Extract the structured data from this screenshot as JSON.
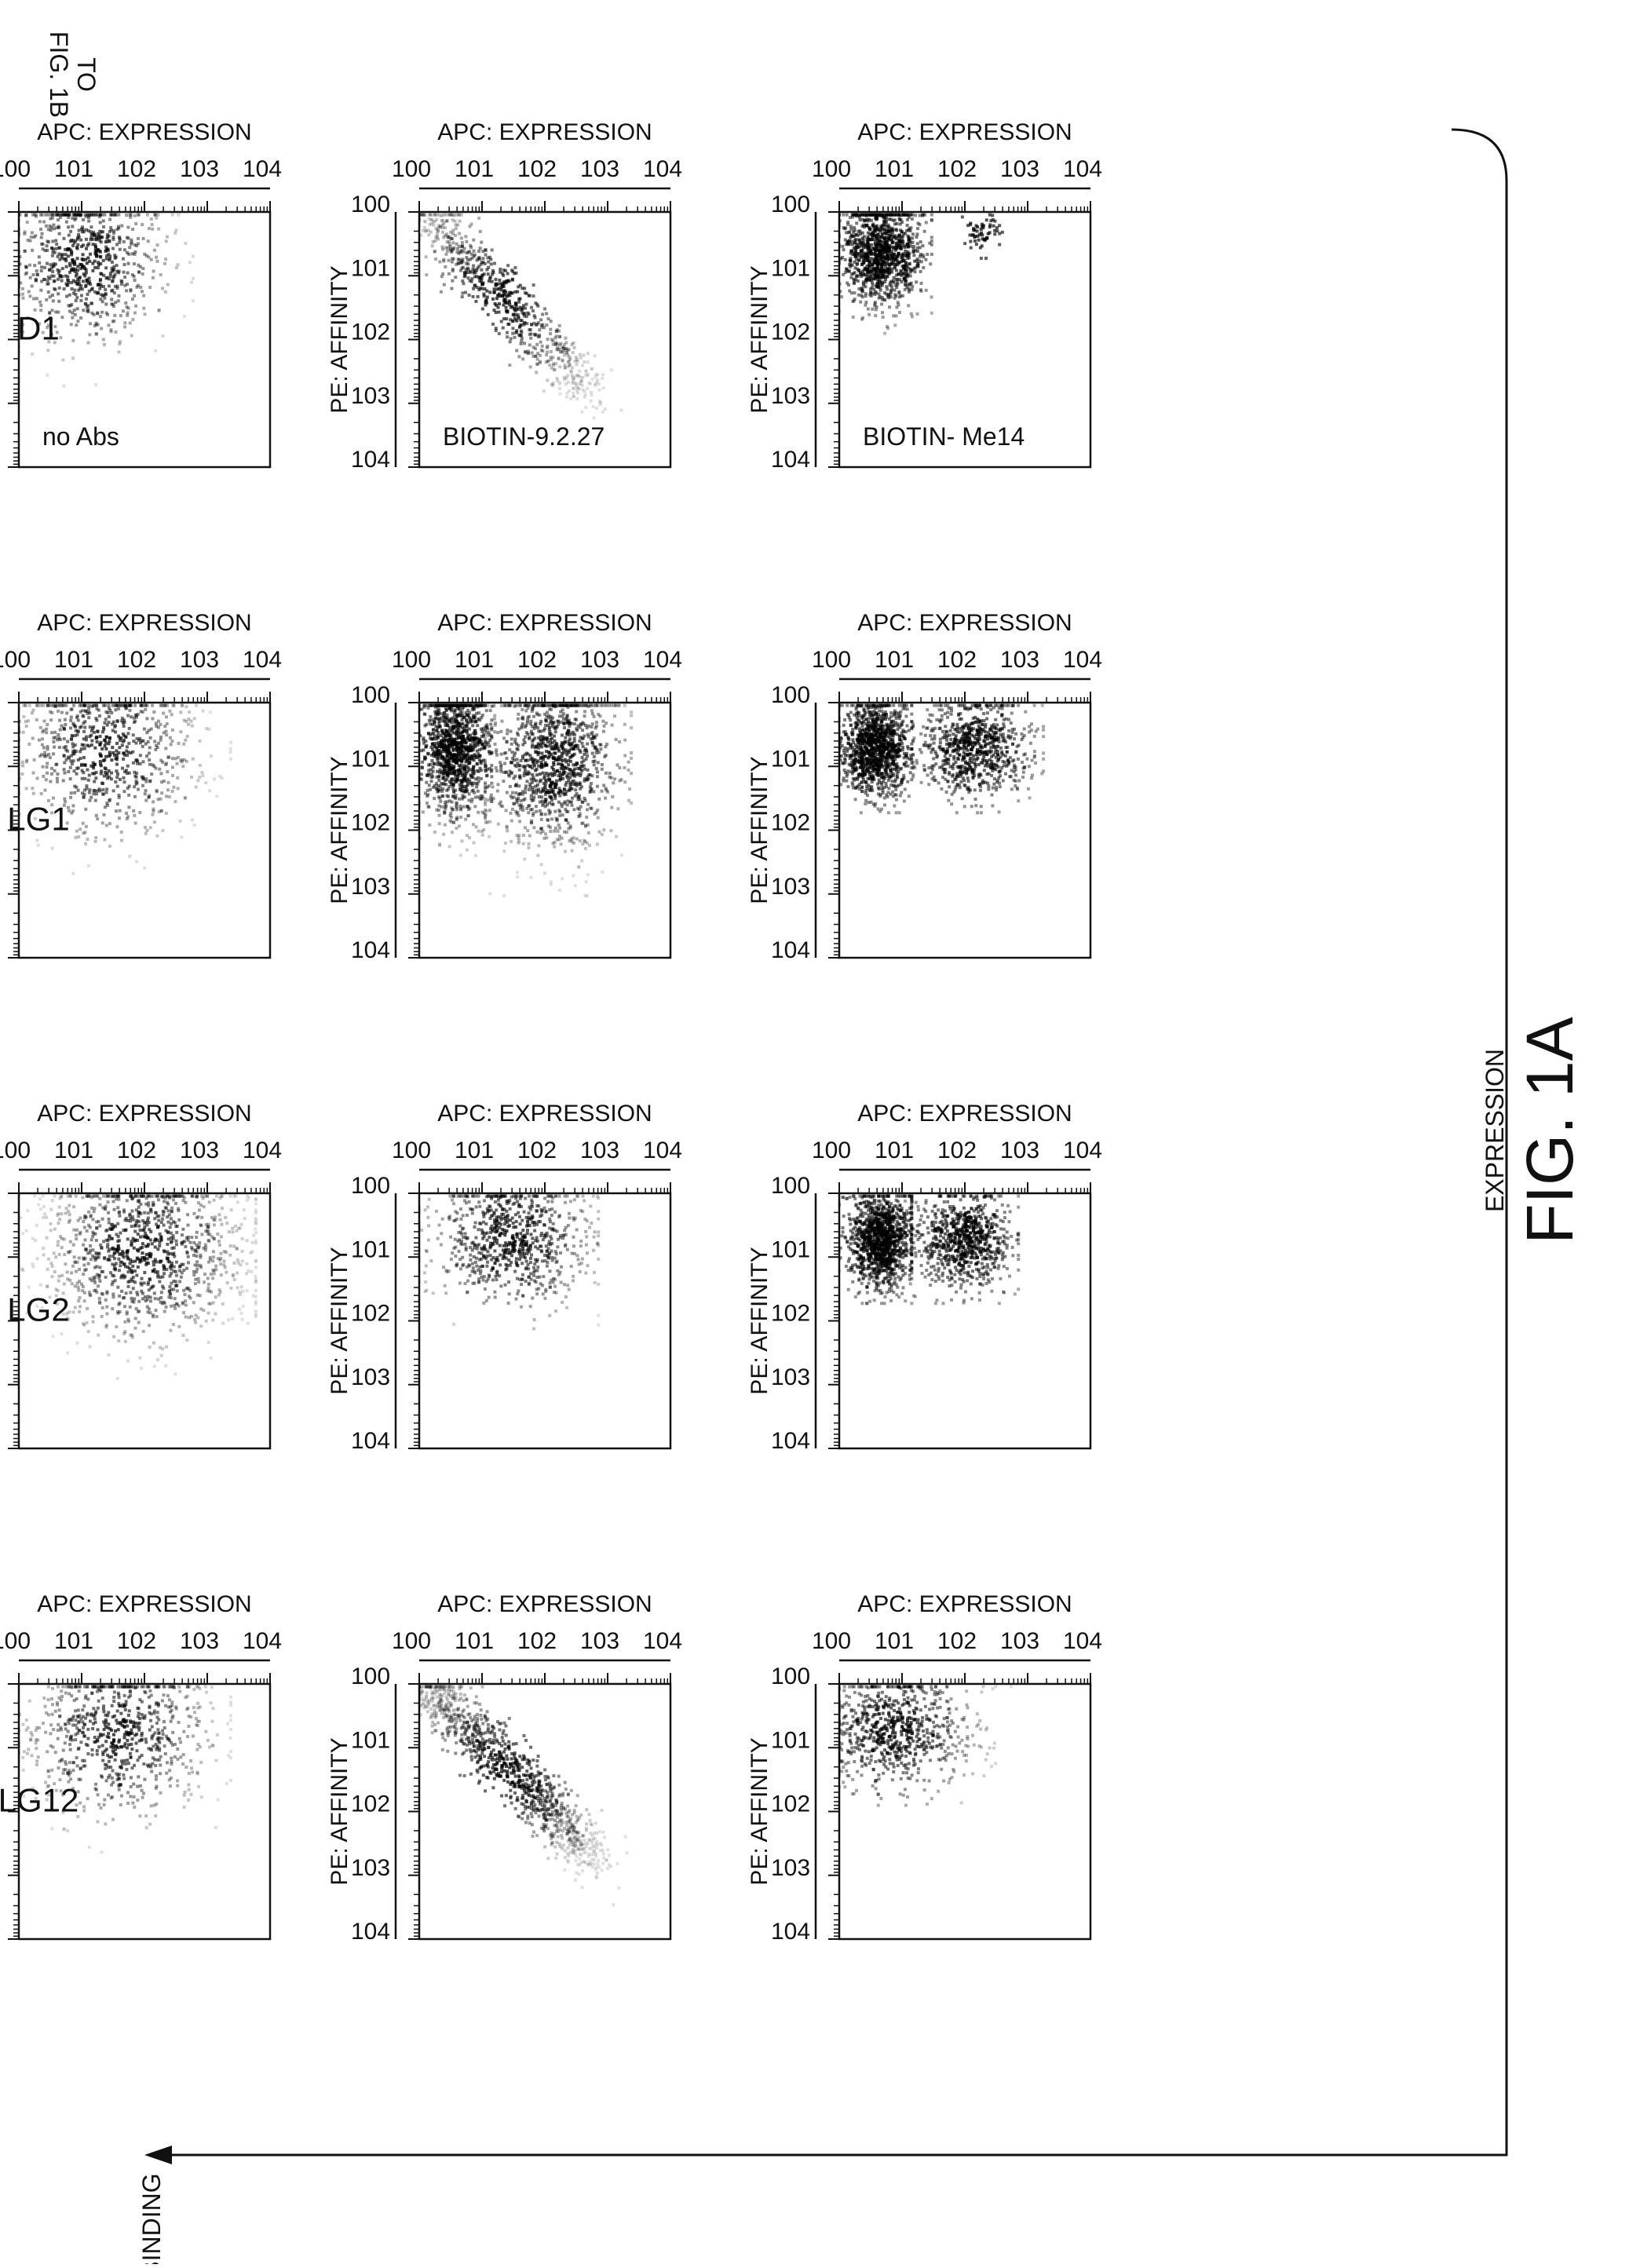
{
  "figure": {
    "title": "FIG. 1A",
    "x_direction_label": "EXPRESSION",
    "binding_label": "BINDING",
    "continuation_label": [
      "TO",
      "FIG. 1B"
    ]
  },
  "columns": [
    "D1",
    "LG1",
    "LG2",
    "LG12"
  ],
  "row_annotations": [
    "no Abs",
    "BIOTIN-9.2.27",
    "BIOTIN- Me14"
  ],
  "chart_data": [
    {
      "type": "scatter",
      "column": "D1",
      "row": 1,
      "annotation": "no Abs",
      "xlabel": "APC: EXPRESSION",
      "ylabel": "PE: AFFINITY",
      "xscale": "log",
      "yscale": "log",
      "xlim": [
        1,
        10000
      ],
      "ylim": [
        1,
        10000
      ],
      "xticks": [
        "10^0",
        "10^1",
        "10^2",
        "10^3",
        "10^4"
      ],
      "yticks": [
        "10^0",
        "10^1",
        "10^2",
        "10^3",
        "10^4"
      ],
      "clusters": [
        {
          "x_range": [
            1,
            500
          ],
          "y_range": [
            1,
            400
          ],
          "center": [
            12,
            6
          ],
          "shape": "diffuse",
          "density": "medium"
        }
      ]
    },
    {
      "type": "scatter",
      "column": "LG1",
      "row": 1,
      "annotation": "",
      "xlabel": "APC: EXPRESSION",
      "ylabel": "PE: AFFINITY",
      "xscale": "log",
      "yscale": "log",
      "xlim": [
        1,
        10000
      ],
      "ylim": [
        1,
        10000
      ],
      "xticks": [
        "10^0",
        "10^1",
        "10^2",
        "10^3",
        "10^4"
      ],
      "yticks": [
        "10^0",
        "10^1",
        "10^2",
        "10^3",
        "10^4"
      ],
      "clusters": [
        {
          "x_range": [
            1,
            2000
          ],
          "y_range": [
            1,
            400
          ],
          "center": [
            25,
            6
          ],
          "shape": "diffuse",
          "density": "medium"
        }
      ]
    },
    {
      "type": "scatter",
      "column": "LG2",
      "row": 1,
      "annotation": "",
      "xlabel": "APC: EXPRESSION",
      "ylabel": "PE: AFFINITY",
      "xscale": "log",
      "yscale": "log",
      "xlim": [
        1,
        10000
      ],
      "ylim": [
        1,
        10000
      ],
      "xticks": [
        "10^0",
        "10^1",
        "10^2",
        "10^3",
        "10^4"
      ],
      "yticks": [
        "10^0",
        "10^1",
        "10^2",
        "10^3",
        "10^4"
      ],
      "clusters": [
        {
          "x_range": [
            1,
            5000
          ],
          "y_range": [
            1,
            600
          ],
          "center": [
            100,
            8
          ],
          "shape": "diffuse",
          "density": "high"
        }
      ]
    },
    {
      "type": "scatter",
      "column": "LG12",
      "row": 1,
      "annotation": "",
      "xlabel": "APC: EXPRESSION",
      "ylabel": "PE: AFFINITY",
      "xscale": "log",
      "yscale": "log",
      "xlim": [
        1,
        10000
      ],
      "ylim": [
        1,
        10000
      ],
      "xticks": [
        "10^0",
        "10^1",
        "10^2",
        "10^3",
        "10^4"
      ],
      "yticks": [
        "10^0",
        "10^1",
        "10^2",
        "10^3",
        "10^4"
      ],
      "clusters": [
        {
          "x_range": [
            1,
            2000
          ],
          "y_range": [
            1,
            400
          ],
          "center": [
            40,
            6
          ],
          "shape": "diffuse",
          "density": "medium"
        }
      ]
    },
    {
      "type": "scatter",
      "column": "D1",
      "row": 2,
      "annotation": "BIOTIN-9.2.27",
      "xlabel": "APC: EXPRESSION",
      "ylabel": "PE: AFFINITY",
      "xscale": "log",
      "yscale": "log",
      "xlim": [
        1,
        10000
      ],
      "ylim": [
        1,
        10000
      ],
      "xticks": [
        "10^0",
        "10^1",
        "10^2",
        "10^3",
        "10^4"
      ],
      "yticks": [
        "10^0",
        "10^1",
        "10^2",
        "10^3",
        "10^4"
      ],
      "clusters": [
        {
          "x_range": [
            1,
            600
          ],
          "y_range": [
            1,
            1200
          ],
          "center": [
            20,
            20
          ],
          "shape": "diagonal",
          "density": "medium"
        }
      ]
    },
    {
      "type": "scatter",
      "column": "LG1",
      "row": 2,
      "annotation": "",
      "xlabel": "APC: EXPRESSION",
      "ylabel": "PE: AFFINITY",
      "xscale": "log",
      "yscale": "log",
      "xlim": [
        1,
        10000
      ],
      "ylim": [
        1,
        10000
      ],
      "xticks": [
        "10^0",
        "10^1",
        "10^2",
        "10^3",
        "10^4"
      ],
      "yticks": [
        "10^0",
        "10^1",
        "10^2",
        "10^3",
        "10^4"
      ],
      "clusters": [
        {
          "x_range": [
            1,
            12
          ],
          "y_range": [
            1,
            200
          ],
          "center": [
            4,
            5
          ],
          "shape": "diffuse",
          "density": "high"
        },
        {
          "x_range": [
            15,
            2000
          ],
          "y_range": [
            1,
            800
          ],
          "center": [
            150,
            8
          ],
          "shape": "diffuse",
          "density": "high"
        }
      ]
    },
    {
      "type": "scatter",
      "column": "LG2",
      "row": 2,
      "annotation": "",
      "xlabel": "APC: EXPRESSION",
      "ylabel": "PE: AFFINITY",
      "xscale": "log",
      "yscale": "log",
      "xlim": [
        1,
        10000
      ],
      "ylim": [
        1,
        10000
      ],
      "xticks": [
        "10^0",
        "10^1",
        "10^2",
        "10^3",
        "10^4"
      ],
      "yticks": [
        "10^0",
        "10^1",
        "10^2",
        "10^3",
        "10^4"
      ],
      "clusters": [
        {
          "x_range": [
            1,
            600
          ],
          "y_range": [
            1,
            100
          ],
          "center": [
            30,
            5
          ],
          "shape": "diffuse",
          "density": "medium"
        }
      ]
    },
    {
      "type": "scatter",
      "column": "LG12",
      "row": 2,
      "annotation": "",
      "xlabel": "APC: EXPRESSION",
      "ylabel": "PE: AFFINITY",
      "xscale": "log",
      "yscale": "log",
      "xlim": [
        1,
        10000
      ],
      "ylim": [
        1,
        10000
      ],
      "xticks": [
        "10^0",
        "10^1",
        "10^2",
        "10^3",
        "10^4"
      ],
      "yticks": [
        "10^0",
        "10^1",
        "10^2",
        "10^3",
        "10^4"
      ],
      "clusters": [
        {
          "x_range": [
            1,
            800
          ],
          "y_range": [
            1,
            1000
          ],
          "center": [
            25,
            20
          ],
          "shape": "diagonal",
          "density": "high"
        }
      ]
    },
    {
      "type": "scatter",
      "column": "D1",
      "row": 3,
      "annotation": "BIOTIN- Me14",
      "xlabel": "APC: EXPRESSION",
      "ylabel": "PE: AFFINITY",
      "xscale": "log",
      "yscale": "log",
      "xlim": [
        1,
        10000
      ],
      "ylim": [
        1,
        10000
      ],
      "xticks": [
        "10^0",
        "10^1",
        "10^2",
        "10^3",
        "10^4"
      ],
      "yticks": [
        "10^0",
        "10^1",
        "10^2",
        "10^3",
        "10^4"
      ],
      "clusters": [
        {
          "x_range": [
            1,
            25
          ],
          "y_range": [
            1,
            60
          ],
          "center": [
            5,
            4
          ],
          "shape": "diffuse",
          "density": "high"
        },
        {
          "x_range": [
            100,
            400
          ],
          "y_range": [
            1,
            4
          ],
          "center": [
            200,
            2
          ],
          "shape": "small",
          "density": "low"
        }
      ]
    },
    {
      "type": "scatter",
      "column": "LG1",
      "row": 3,
      "annotation": "",
      "xlabel": "APC: EXPRESSION",
      "ylabel": "PE: AFFINITY",
      "xscale": "log",
      "yscale": "log",
      "xlim": [
        1,
        10000
      ],
      "ylim": [
        1,
        10000
      ],
      "xticks": [
        "10^0",
        "10^1",
        "10^2",
        "10^3",
        "10^4"
      ],
      "yticks": [
        "10^0",
        "10^1",
        "10^2",
        "10^3",
        "10^4"
      ],
      "clusters": [
        {
          "x_range": [
            1,
            12
          ],
          "y_range": [
            1,
            40
          ],
          "center": [
            4,
            5
          ],
          "shape": "diffuse",
          "density": "high"
        },
        {
          "x_range": [
            20,
            1500
          ],
          "y_range": [
            1,
            40
          ],
          "center": [
            150,
            5
          ],
          "shape": "diffuse",
          "density": "medium"
        }
      ]
    },
    {
      "type": "scatter",
      "column": "LG2",
      "row": 3,
      "annotation": "",
      "xlabel": "APC: EXPRESSION",
      "ylabel": "PE: AFFINITY",
      "xscale": "log",
      "yscale": "log",
      "xlim": [
        1,
        10000
      ],
      "ylim": [
        1,
        10000
      ],
      "xticks": [
        "10^0",
        "10^1",
        "10^2",
        "10^3",
        "10^4"
      ],
      "yticks": [
        "10^0",
        "10^1",
        "10^2",
        "10^3",
        "10^4"
      ],
      "clusters": [
        {
          "x_range": [
            1,
            12
          ],
          "y_range": [
            1,
            40
          ],
          "center": [
            5,
            5
          ],
          "shape": "diffuse",
          "density": "high"
        },
        {
          "x_range": [
            15,
            600
          ],
          "y_range": [
            1,
            40
          ],
          "center": [
            100,
            5
          ],
          "shape": "diffuse",
          "density": "medium"
        }
      ]
    },
    {
      "type": "scatter",
      "column": "LG12",
      "row": 3,
      "annotation": "",
      "xlabel": "APC: EXPRESSION",
      "ylabel": "PE: AFFINITY",
      "xscale": "log",
      "yscale": "log",
      "xlim": [
        1,
        10000
      ],
      "ylim": [
        1,
        10000
      ],
      "xticks": [
        "10^0",
        "10^1",
        "10^2",
        "10^3",
        "10^4"
      ],
      "yticks": [
        "10^0",
        "10^1",
        "10^2",
        "10^3",
        "10^4"
      ],
      "clusters": [
        {
          "x_range": [
            1,
            500
          ],
          "y_range": [
            1,
            60
          ],
          "center": [
            8,
            5
          ],
          "shape": "diffuse",
          "density": "medium"
        }
      ]
    }
  ]
}
